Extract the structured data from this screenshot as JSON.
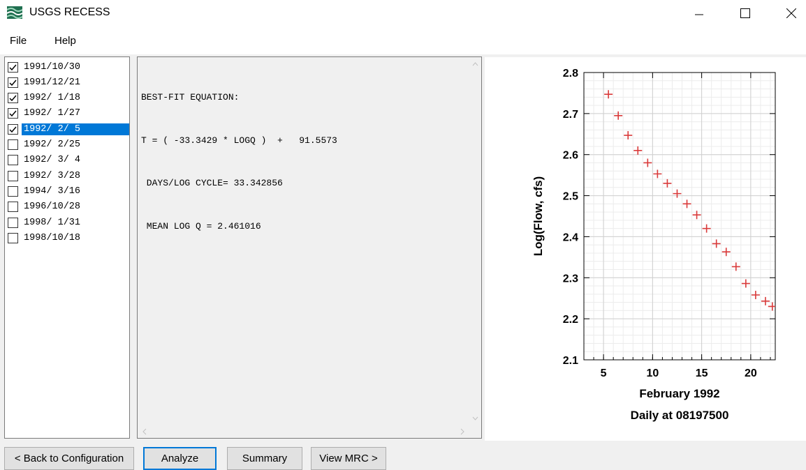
{
  "window": {
    "title": "USGS RECESS",
    "icon": "usgs-logo-icon",
    "controls": [
      "minimize-icon",
      "maximize-icon",
      "close-icon"
    ]
  },
  "menu": {
    "items": [
      {
        "label": "File"
      },
      {
        "label": "Help"
      }
    ]
  },
  "recessions": [
    {
      "label": "1991/10/30",
      "checked": true,
      "selected": false
    },
    {
      "label": "1991/12/21",
      "checked": true,
      "selected": false
    },
    {
      "label": "1992/ 1/18",
      "checked": true,
      "selected": false
    },
    {
      "label": "1992/ 1/27",
      "checked": true,
      "selected": false
    },
    {
      "label": "1992/ 2/ 5",
      "checked": true,
      "selected": true
    },
    {
      "label": "1992/ 2/25",
      "checked": false,
      "selected": false
    },
    {
      "label": "1992/ 3/ 4",
      "checked": false,
      "selected": false
    },
    {
      "label": "1992/ 3/28",
      "checked": false,
      "selected": false
    },
    {
      "label": "1994/ 3/16",
      "checked": false,
      "selected": false
    },
    {
      "label": "1996/10/28",
      "checked": false,
      "selected": false
    },
    {
      "label": "1998/ 1/31",
      "checked": false,
      "selected": false
    },
    {
      "label": "1998/10/18",
      "checked": false,
      "selected": false
    }
  ],
  "output": {
    "lines": [
      "BEST-FIT EQUATION:",
      "T = ( -33.3429 * LOGQ )  +   91.5573",
      " DAYS/LOG CYCLE= 33.342856",
      " MEAN LOG Q = 2.461016"
    ]
  },
  "chart_data": {
    "type": "scatter",
    "marker": "plus",
    "marker_color": "#d93a3a",
    "ylabel": "Log(Flow, cfs)",
    "xlabel": "February 1992",
    "subtitle": "Daily at 08197500",
    "xlim": [
      3,
      22.5
    ],
    "ylim": [
      2.1,
      2.8
    ],
    "xticks": [
      5,
      10,
      15,
      20
    ],
    "yticks": [
      2.1,
      2.2,
      2.3,
      2.4,
      2.5,
      2.6,
      2.7,
      2.8
    ],
    "grid": true,
    "x": [
      5.5,
      6.5,
      7.5,
      8.5,
      9.5,
      10.5,
      11.5,
      12.5,
      13.5,
      14.5,
      15.5,
      16.5,
      17.5,
      18.5,
      19.5,
      20.5,
      21.5,
      22.2
    ],
    "y": [
      2.747,
      2.695,
      2.647,
      2.61,
      2.58,
      2.553,
      2.53,
      2.505,
      2.48,
      2.453,
      2.42,
      2.383,
      2.363,
      2.327,
      2.286,
      2.258,
      2.243,
      2.23
    ]
  },
  "buttons": {
    "back": "< Back to Configuration",
    "analyze": "Analyze",
    "summary": "Summary",
    "view_mrc": "View MRC >"
  }
}
